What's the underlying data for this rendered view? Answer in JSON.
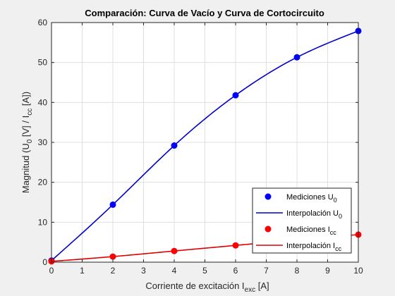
{
  "chart_data": {
    "type": "line",
    "title": "Comparación: Curva de Vacío y Curva de Cortocircuito",
    "xlabel": {
      "main": "Corriente de excitación I",
      "sub": "exc",
      "tail": " [A]"
    },
    "ylabel": {
      "p1": "Magnitud (U",
      "s1": "0",
      "p2": " [V] / I",
      "s2": "cc",
      "p3": " [A])"
    },
    "xlim": [
      0,
      10
    ],
    "ylim": [
      0,
      60
    ],
    "xticks": [
      0,
      1,
      2,
      3,
      4,
      5,
      6,
      7,
      8,
      9,
      10
    ],
    "yticks": [
      0,
      10,
      20,
      30,
      40,
      50,
      60
    ],
    "grid": true,
    "legend_position": "bottom-right",
    "series": [
      {
        "kind": "markers",
        "color": "#0000ff",
        "legend": {
          "main": "Mediciones U",
          "sub": "0"
        },
        "x": [
          0,
          2,
          4,
          6,
          8,
          10
        ],
        "y": [
          0.4,
          14.4,
          29.2,
          41.8,
          51.3,
          57.9
        ]
      },
      {
        "kind": "line",
        "color": "#0000cc",
        "legend": {
          "main": "Interpolación U",
          "sub": "0"
        },
        "x": [
          0,
          2,
          4,
          6,
          8,
          10
        ],
        "y": [
          0.4,
          14.4,
          29.2,
          41.8,
          51.3,
          57.9
        ]
      },
      {
        "kind": "markers",
        "color": "#ff0000",
        "legend": {
          "main": "Mediciones I",
          "sub": "cc"
        },
        "x": [
          0,
          2,
          4,
          6,
          8,
          10
        ],
        "y": [
          0.2,
          1.4,
          2.8,
          4.2,
          5.6,
          6.9
        ]
      },
      {
        "kind": "line",
        "color": "#dd0000",
        "legend": {
          "main": "Interpolación I",
          "sub": "cc"
        },
        "x": [
          0,
          2,
          4,
          6,
          8,
          10
        ],
        "y": [
          0.2,
          1.4,
          2.8,
          4.2,
          5.6,
          6.9
        ]
      }
    ]
  }
}
